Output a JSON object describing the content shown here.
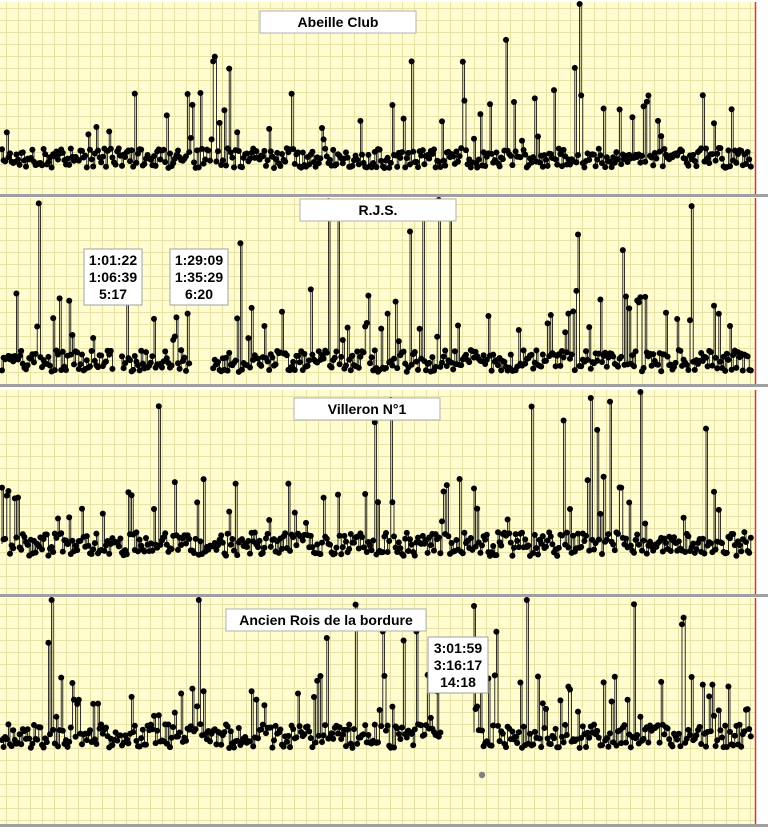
{
  "colors": {
    "plot_background": "#fffdd0",
    "grid": "#e6e2a8",
    "series": "#000000",
    "separator": "#a0a0a0",
    "edge_marker": "#e03030",
    "outlier_marker": "#808080"
  },
  "chart_data": [
    {
      "type": "scatter",
      "title": "Abeille Club",
      "style": "points connected by thin vertical lines",
      "grid": true,
      "y_scale": "lap time (larger = higher)",
      "gaps": [],
      "annotations": []
    },
    {
      "type": "scatter",
      "title": "R.J.S.",
      "style": "points connected by thin vertical lines",
      "grid": true,
      "gaps": [
        {
          "start": "1:01:22",
          "end": "1:06:39",
          "duration": "5:17"
        },
        {
          "start": "1:29:09",
          "end": "1:35:29",
          "duration": "6:20"
        }
      ],
      "annotations": [
        {
          "lines": [
            "1:01:22",
            "1:06:39",
            "5:17"
          ]
        },
        {
          "lines": [
            "1:29:09",
            "1:35:29",
            "6:20"
          ]
        }
      ]
    },
    {
      "type": "scatter",
      "title": "Villeron N°1",
      "style": "points connected by thin vertical lines",
      "grid": true,
      "gaps": [],
      "annotations": []
    },
    {
      "type": "scatter",
      "title": "Ancien Rois de la bordure",
      "style": "points connected by thin vertical lines",
      "grid": true,
      "gaps": [
        {
          "start": "3:01:59",
          "end": "3:16:17",
          "duration": "14:18"
        }
      ],
      "annotations": [
        {
          "lines": [
            "3:01:59",
            "3:16:17",
            "14:18"
          ]
        }
      ]
    }
  ]
}
